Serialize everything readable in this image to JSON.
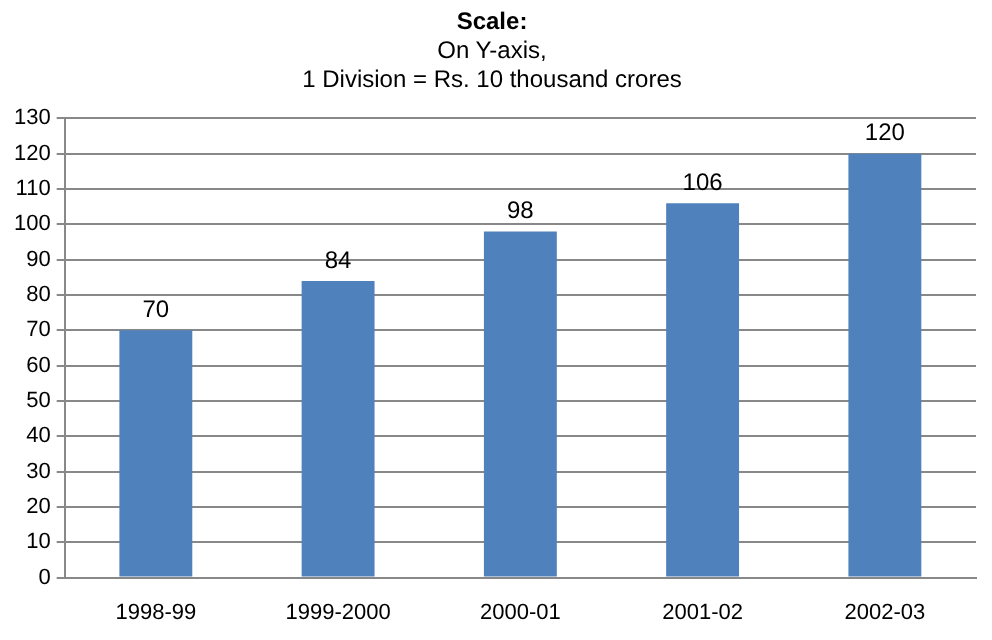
{
  "chart_data": {
    "type": "bar",
    "title": "Scale:",
    "subtitle": "On Y-axis,\n1 Division = Rs. 10 thousand crores",
    "categories": [
      "1998-99",
      "1999-2000",
      "2000-01",
      "2001-02",
      "2002-03"
    ],
    "values": [
      70,
      84,
      98,
      106,
      120
    ],
    "color": "#4f81bd",
    "ylim": [
      0,
      130
    ],
    "yticks": [
      0,
      10,
      20,
      30,
      40,
      50,
      60,
      70,
      80,
      90,
      100,
      110,
      120,
      130
    ],
    "grid": "y",
    "data_labels": true,
    "legend": false
  }
}
